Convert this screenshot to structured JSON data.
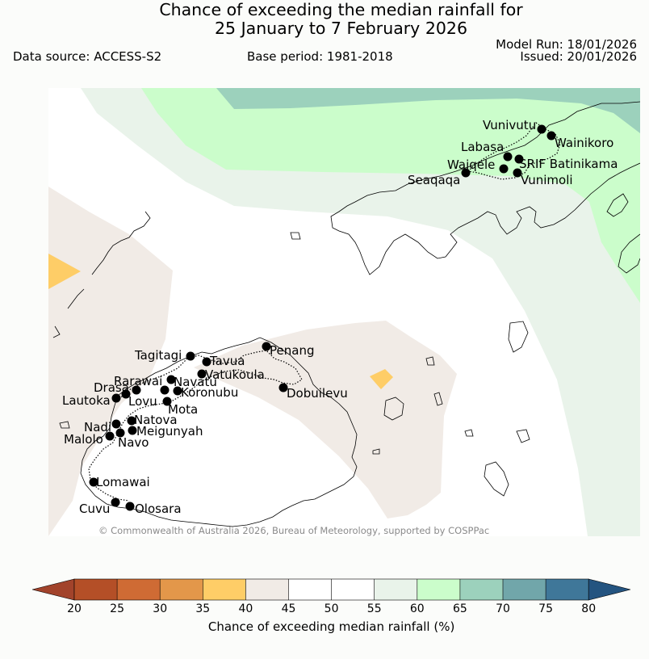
{
  "header": {
    "title_line1": "Chance of exceeding the median rainfall for",
    "title_line2": "25 January to 7 February 2026",
    "data_source": "Data source: ACCESS-S2",
    "base_period": "Base period: 1981-2018",
    "model_run": "Model Run: 18/01/2026",
    "issued": "Issued: 20/01/2026"
  },
  "map": {
    "credit": "© Commonwealth of Australia 2026, Bureau of Meteorology, supported by COSPPac",
    "stations": [
      "Vunivutu",
      "Wainikoro",
      "Labasa",
      "Waiqele",
      "SRIF Batinikama",
      "Seaqaqa",
      "Vunimoli",
      "Tagitagi",
      "Tavua",
      "Penang",
      "Vatukoula",
      "Rarawai",
      "Navatu",
      "Koronubu",
      "Drasa",
      "Lautoka",
      "Lovu",
      "Mota",
      "Dobuilevu",
      "Natova",
      "Nadi",
      "Meigunyah",
      "Malolo",
      "Navo",
      "Lomawai",
      "Cuvu",
      "Olosara"
    ]
  },
  "colorbar": {
    "title": "Chance of exceeding median rainfall (%)",
    "ticks": [
      "20",
      "25",
      "30",
      "35",
      "40",
      "45",
      "50",
      "55",
      "60",
      "65",
      "70",
      "75",
      "80"
    ],
    "colors": [
      "#a2432b",
      "#b44f27",
      "#cf6b34",
      "#e3974a",
      "#fecd67",
      "#f1ebe6",
      "#ffffff",
      "#ffffff",
      "#e9f3ea",
      "#cbfdcb",
      "#9cd1bc",
      "#71a6aa",
      "#3f7799",
      "#245480"
    ]
  }
}
